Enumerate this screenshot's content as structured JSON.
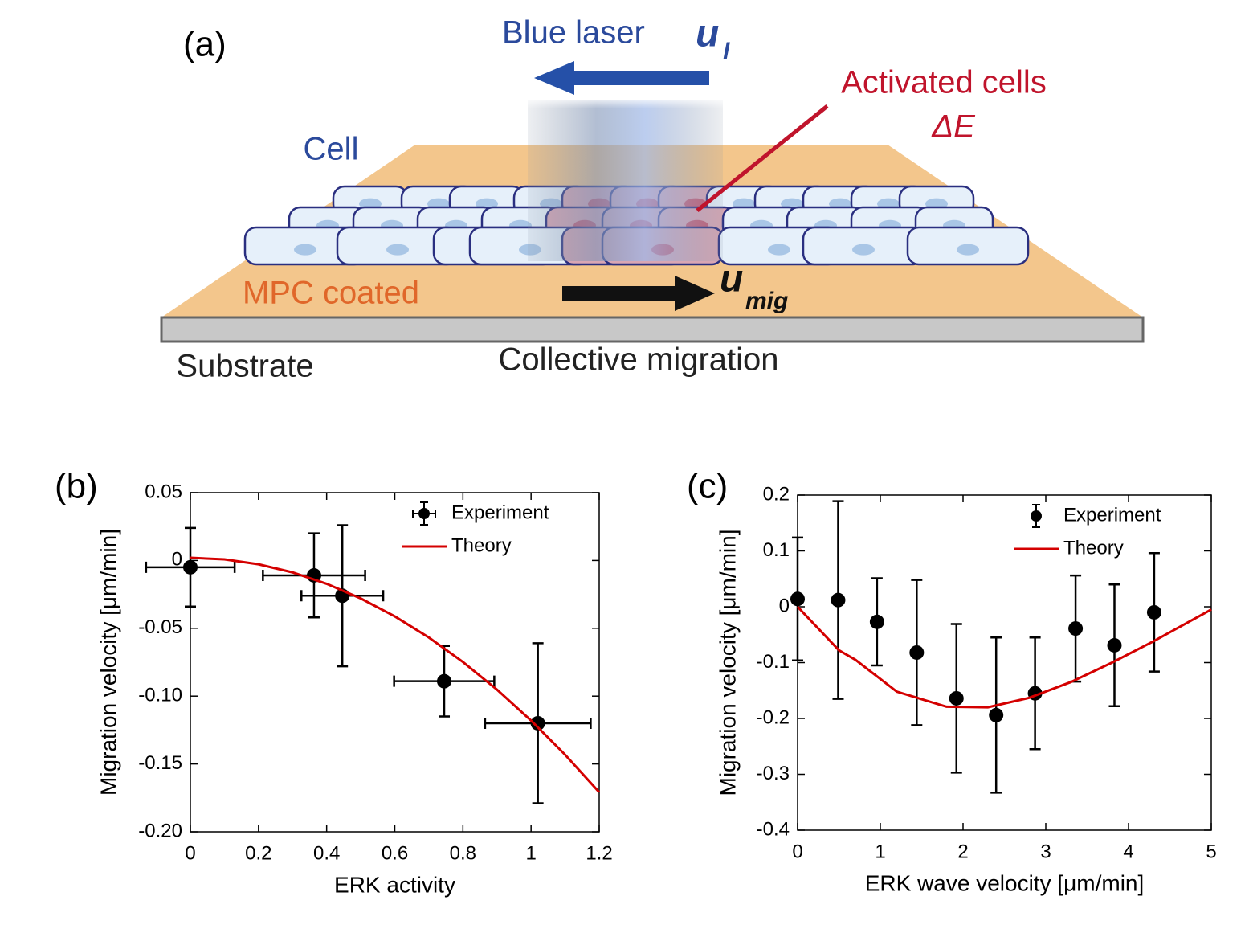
{
  "diagram": {
    "panel": "(a)",
    "laser_label": "Blue laser",
    "laser_symbol": "u",
    "laser_subscript": "l",
    "activated_label": "Activated cells",
    "activated_symbol": "ΔE",
    "cell_label": "Cell",
    "coating_label": "MPC coated",
    "migration_symbol": "u",
    "migration_subscript": "mig",
    "substrate_label": "Substrate",
    "migration_label": "Collective migration"
  },
  "chart_data": [
    {
      "type": "errorbar",
      "panel": "(b)",
      "xlabel": "ERK activity",
      "ylabel": "Migration velocity [μm/min]",
      "xlim": [
        0,
        1.2
      ],
      "xticks": [
        0,
        0.2,
        0.4,
        0.6,
        0.8,
        1,
        1.2
      ],
      "ylim": [
        -0.2,
        0.05
      ],
      "yticks": [
        0.05,
        0,
        -0.05,
        {
          "value": -0.1,
          "label": "-0.10"
        },
        -0.15,
        {
          "value": -0.2,
          "label": "-0.20"
        }
      ],
      "legend": "upper right",
      "series": [
        {
          "name": "Experiment",
          "type": "errorbar",
          "color": "#000000",
          "x": [
            0,
            0.363,
            0.446,
            0.745,
            1.02
          ],
          "values": [
            -0.005,
            -0.011,
            -0.026,
            -0.089,
            -0.12
          ],
          "xerr": [
            0.13,
            0.15,
            0.12,
            0.147,
            0.155
          ],
          "yerr": [
            0.029,
            0.031,
            0.052,
            0.026,
            0.059
          ]
        },
        {
          "name": "Theory",
          "type": "line",
          "color": "#d40000",
          "x": [
            0,
            0.1,
            0.2,
            0.3,
            0.4,
            0.5,
            0.6,
            0.7,
            0.8,
            0.9,
            1,
            1.1,
            1.2
          ],
          "values": [
            0.002,
            0.0008,
            -0.0028,
            -0.0088,
            -0.0172,
            -0.028,
            -0.0412,
            -0.0568,
            -0.0748,
            -0.0952,
            -0.118,
            -0.1432,
            -0.1708
          ]
        }
      ]
    },
    {
      "type": "errorbar",
      "panel": "(c)",
      "xlabel": "ERK wave velocity [μm/min]",
      "ylabel": "Migration velocity [μm/min]",
      "xlim": [
        0,
        5
      ],
      "xticks": [
        0,
        1,
        2,
        3,
        4,
        5
      ],
      "ylim": [
        -0.4,
        0.2
      ],
      "yticks": [
        0.2,
        0.1,
        0,
        -0.1,
        -0.2,
        -0.3,
        -0.4
      ],
      "legend": "upper right",
      "series": [
        {
          "name": "Experiment",
          "type": "errorbar",
          "color": "#000000",
          "x": [
            0,
            0.49,
            0.96,
            1.44,
            1.92,
            2.4,
            2.87,
            3.36,
            3.83,
            4.31
          ],
          "values": [
            0.014,
            0.012,
            -0.027,
            -0.082,
            -0.164,
            -0.194,
            -0.155,
            -0.039,
            -0.069,
            -0.01
          ],
          "yerr": [
            0.11,
            0.177,
            0.078,
            0.13,
            0.133,
            0.139,
            0.1,
            0.095,
            0.109,
            0.106
          ]
        },
        {
          "name": "Theory",
          "type": "line",
          "color": "#d40000",
          "x": [
            0,
            0.5,
            0.7,
            1.2,
            1.8,
            2.3,
            2.8,
            3.3,
            3.8,
            4.3,
            5
          ],
          "values": [
            0,
            -0.078,
            -0.095,
            -0.152,
            -0.179,
            -0.18,
            -0.163,
            -0.135,
            -0.1,
            -0.062,
            -0.005
          ]
        }
      ]
    }
  ]
}
